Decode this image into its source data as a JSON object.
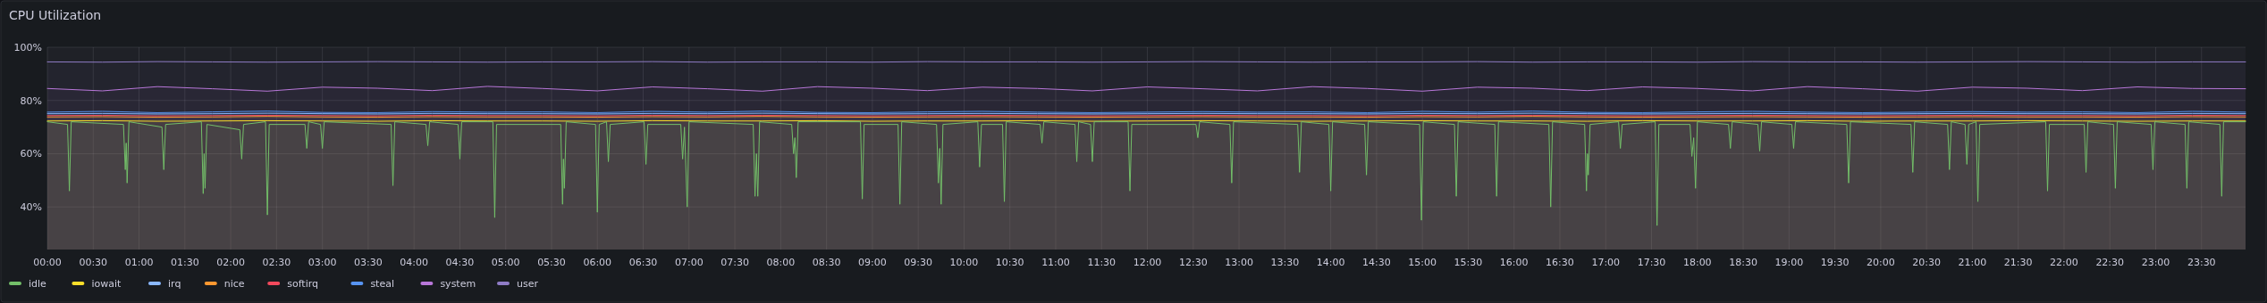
{
  "chart_data": {
    "type": "area",
    "title": "CPU Utilization",
    "x": [
      0,
      0.6,
      1.2,
      1.8,
      2.4,
      3,
      3.6,
      4.2,
      4.8,
      5.4,
      6,
      6.6,
      7.2,
      7.8,
      8.4,
      9,
      9.6,
      10.2,
      10.8,
      11.4,
      12,
      12.6,
      13.2,
      13.8,
      14.4,
      15,
      15.6,
      16.2,
      16.8,
      17.4,
      18,
      18.6,
      19.2,
      19.8,
      20.4,
      21,
      21.6,
      22.2,
      22.8,
      23.4,
      23.98
    ],
    "xlim": [
      0,
      23.98
    ],
    "xticks": [
      {
        "value": 0,
        "label": "00:00"
      },
      {
        "value": 0.5,
        "label": "00:30"
      },
      {
        "value": 1,
        "label": "01:00"
      },
      {
        "value": 1.5,
        "label": "01:30"
      },
      {
        "value": 2,
        "label": "02:00"
      },
      {
        "value": 2.5,
        "label": "02:30"
      },
      {
        "value": 3,
        "label": "03:00"
      },
      {
        "value": 3.5,
        "label": "03:30"
      },
      {
        "value": 4,
        "label": "04:00"
      },
      {
        "value": 4.5,
        "label": "04:30"
      },
      {
        "value": 5,
        "label": "05:00"
      },
      {
        "value": 5.5,
        "label": "05:30"
      },
      {
        "value": 6,
        "label": "06:00"
      },
      {
        "value": 6.5,
        "label": "06:30"
      },
      {
        "value": 7,
        "label": "07:00"
      },
      {
        "value": 7.5,
        "label": "07:30"
      },
      {
        "value": 8,
        "label": "08:00"
      },
      {
        "value": 8.5,
        "label": "08:30"
      },
      {
        "value": 9,
        "label": "09:00"
      },
      {
        "value": 9.5,
        "label": "09:30"
      },
      {
        "value": 10,
        "label": "10:00"
      },
      {
        "value": 10.5,
        "label": "10:30"
      },
      {
        "value": 11,
        "label": "11:00"
      },
      {
        "value": 11.5,
        "label": "11:30"
      },
      {
        "value": 12,
        "label": "12:00"
      },
      {
        "value": 12.5,
        "label": "12:30"
      },
      {
        "value": 13,
        "label": "13:00"
      },
      {
        "value": 13.5,
        "label": "13:30"
      },
      {
        "value": 14,
        "label": "14:00"
      },
      {
        "value": 14.5,
        "label": "14:30"
      },
      {
        "value": 15,
        "label": "15:00"
      },
      {
        "value": 15.5,
        "label": "15:30"
      },
      {
        "value": 16,
        "label": "16:00"
      },
      {
        "value": 16.5,
        "label": "16:30"
      },
      {
        "value": 17,
        "label": "17:00"
      },
      {
        "value": 17.5,
        "label": "17:30"
      },
      {
        "value": 18,
        "label": "18:00"
      },
      {
        "value": 18.5,
        "label": "18:30"
      },
      {
        "value": 19,
        "label": "19:00"
      },
      {
        "value": 19.5,
        "label": "19:30"
      },
      {
        "value": 20,
        "label": "20:00"
      },
      {
        "value": 20.5,
        "label": "20:30"
      },
      {
        "value": 21,
        "label": "21:00"
      },
      {
        "value": 21.5,
        "label": "21:30"
      },
      {
        "value": 22,
        "label": "22:00"
      },
      {
        "value": 22.5,
        "label": "22:30"
      },
      {
        "value": 23,
        "label": "23:00"
      },
      {
        "value": 23.5,
        "label": "23:30"
      }
    ],
    "ylim": [
      24,
      100
    ],
    "yticks": [
      {
        "value": 40,
        "label": "40%"
      },
      {
        "value": 60,
        "label": "60%"
      },
      {
        "value": 80,
        "label": "80%"
      },
      {
        "value": 100,
        "label": "100%"
      }
    ],
    "grid": true,
    "legend": "bottom",
    "line_style": "solid",
    "series": [
      {
        "name": "idle",
        "color": "#73bf69",
        "x": [
          0,
          0.22,
          0.24,
          0.26,
          0.83,
          0.85,
          0.86,
          0.87,
          0.89,
          1.25,
          1.27,
          1.29,
          1.68,
          1.7,
          1.71,
          1.72,
          1.74,
          2.1,
          2.12,
          2.14,
          2.38,
          2.4,
          2.42,
          2.81,
          2.83,
          2.85,
          2.98,
          3,
          3.02,
          3.75,
          3.77,
          3.79,
          4.13,
          4.15,
          4.17,
          4.48,
          4.5,
          4.52,
          4.86,
          4.88,
          4.9,
          5.6,
          5.62,
          5.63,
          5.64,
          5.66,
          5.98,
          6,
          6.02,
          6.1,
          6.12,
          6.14,
          6.51,
          6.53,
          6.55,
          6.91,
          6.93,
          6.95,
          6.98,
          7,
          7.7,
          7.72,
          7.735,
          7.75,
          7.77,
          8.12,
          8.14,
          8.155,
          8.17,
          8.19,
          8.87,
          8.89,
          8.91,
          9.28,
          9.3,
          9.32,
          9.7,
          9.72,
          9.735,
          9.75,
          9.77,
          10.15,
          10.17,
          10.19,
          10.42,
          10.44,
          10.46,
          10.83,
          10.85,
          10.87,
          11.21,
          11.23,
          11.25,
          11.38,
          11.4,
          11.42,
          11.79,
          11.81,
          11.83,
          12.53,
          12.55,
          12.57,
          12.9,
          12.92,
          12.94,
          13.64,
          13.66,
          13.68,
          13.98,
          14,
          14.02,
          14.37,
          14.39,
          14.41,
          14.97,
          14.99,
          15.01,
          15.35,
          15.37,
          15.39,
          15.79,
          15.81,
          15.83,
          16.38,
          16.4,
          16.42,
          16.77,
          16.79,
          16.8,
          16.81,
          16.83,
          17.14,
          17.16,
          17.18,
          17.54,
          17.56,
          17.58,
          17.92,
          17.94,
          17.96,
          17.98,
          18,
          18.34,
          18.36,
          18.38,
          18.66,
          18.68,
          18.7,
          19.03,
          19.05,
          19.07,
          19.63,
          19.65,
          19.67,
          20.33,
          20.35,
          20.37,
          20.73,
          20.75,
          20.77,
          20.92,
          20.94,
          20.96,
          21.04,
          21.06,
          21.08,
          21.8,
          21.82,
          21.84,
          22.22,
          22.24,
          22.26,
          22.54,
          22.56,
          22.58,
          22.95,
          22.97,
          22.99,
          23.32,
          23.34,
          23.36,
          23.7,
          23.72,
          23.74,
          23.98
        ],
        "values": [
          72,
          71,
          46,
          72,
          71,
          54,
          64,
          49,
          72,
          70,
          54,
          71,
          72,
          45,
          60,
          47,
          71,
          69,
          58,
          71,
          72,
          37,
          71,
          71,
          62,
          72,
          71,
          62,
          72,
          71,
          48,
          72,
          71,
          63,
          72,
          71,
          58,
          72,
          72,
          36,
          71,
          71,
          41,
          58,
          47,
          72,
          71,
          38,
          71,
          72,
          57,
          71,
          72,
          56,
          71,
          71,
          58,
          70,
          40,
          72,
          71,
          44,
          60,
          44,
          72,
          71,
          60,
          66,
          51,
          72,
          72,
          43,
          71,
          71,
          41,
          72,
          71,
          49,
          62,
          41,
          71,
          72,
          55,
          71,
          71,
          42,
          72,
          71,
          64,
          72,
          71,
          57,
          72,
          71,
          57,
          72,
          72,
          46,
          71,
          71,
          66,
          72,
          71,
          49,
          72,
          71,
          53,
          72,
          71,
          46,
          72,
          71,
          52,
          72,
          71,
          35,
          72,
          71,
          44,
          72,
          71,
          44,
          72,
          71,
          40,
          72,
          71,
          46,
          60,
          52,
          71,
          72,
          62,
          71,
          72,
          33,
          71,
          71,
          59,
          66,
          47,
          72,
          71,
          62,
          72,
          71,
          61,
          72,
          71,
          62,
          72,
          71,
          49,
          72,
          71,
          53,
          72,
          71,
          54,
          72,
          71,
          56,
          71,
          72,
          42,
          71,
          72,
          46,
          71,
          71,
          53,
          72,
          71,
          47,
          72,
          71,
          54,
          72,
          71,
          47,
          72,
          71,
          44,
          72,
          72
        ]
      },
      {
        "name": "iowait",
        "color": "#fade2a",
        "values": [
          72.3,
          72.4,
          72.2,
          72.3,
          72.4,
          72.3,
          72.2,
          72.4,
          72.3,
          72.3,
          72.2,
          72.4,
          72.3,
          72.3,
          72.4,
          72.2,
          72.3,
          72.3,
          72.4,
          72.2,
          72.3,
          72.4,
          72.3,
          72.2,
          72.3,
          72.4,
          72.3,
          72.3,
          72.2,
          72.4,
          72.3,
          72.3,
          72.4,
          72.2,
          72.3,
          72.3,
          72.4,
          72.3,
          72.2,
          72.3,
          72.3
        ]
      },
      {
        "name": "irq",
        "color": "#8ab8ff",
        "values": [
          75,
          75.1,
          74.9,
          75,
          75.2,
          75,
          74.9,
          75.1,
          75,
          75,
          74.9,
          75.1,
          75,
          75.2,
          75,
          74.9,
          75,
          75.1,
          75,
          74.9,
          75,
          75.1,
          75,
          75,
          74.9,
          75.1,
          75,
          75.2,
          75,
          74.9,
          75,
          75.1,
          75,
          74.9,
          75,
          75.1,
          75,
          75,
          74.9,
          75.1,
          75
        ]
      },
      {
        "name": "nice",
        "color": "#ff9830",
        "values": [
          73.8,
          73.9,
          73.7,
          73.8,
          74,
          73.8,
          73.7,
          73.9,
          73.8,
          73.8,
          73.7,
          73.9,
          73.8,
          74,
          73.8,
          73.7,
          73.8,
          73.9,
          73.8,
          73.7,
          73.8,
          73.9,
          73.8,
          73.8,
          73.7,
          73.9,
          73.8,
          74,
          73.8,
          73.7,
          73.8,
          73.9,
          73.8,
          73.7,
          73.8,
          73.9,
          73.8,
          73.8,
          73.7,
          73.9,
          73.8
        ]
      },
      {
        "name": "softirq",
        "color": "#f2495c",
        "values": [
          74.3,
          74.4,
          74.2,
          74.3,
          74.4,
          74.3,
          74.2,
          74.4,
          74.3,
          74.3,
          74.2,
          74.4,
          74.3,
          74.4,
          74.3,
          74.2,
          74.3,
          74.4,
          74.3,
          74.2,
          74.3,
          74.4,
          74.3,
          74.3,
          74.2,
          74.4,
          74.3,
          74.4,
          74.3,
          74.2,
          74.3,
          74.4,
          74.3,
          74.2,
          74.3,
          74.4,
          74.3,
          74.3,
          74.2,
          74.4,
          74.3
        ]
      },
      {
        "name": "steal",
        "color": "#5794f2",
        "values": [
          75.6,
          75.9,
          75.4,
          75.7,
          76,
          75.5,
          75.4,
          75.8,
          75.6,
          75.7,
          75.4,
          75.9,
          75.6,
          76,
          75.5,
          75.4,
          75.7,
          75.9,
          75.6,
          75.4,
          75.6,
          75.8,
          75.6,
          75.7,
          75.4,
          75.9,
          75.6,
          76,
          75.5,
          75.4,
          75.7,
          75.9,
          75.6,
          75.4,
          75.6,
          75.8,
          75.6,
          75.7,
          75.4,
          75.9,
          75.6
        ]
      },
      {
        "name": "system",
        "color": "#b877d9",
        "values": [
          84.5,
          83.6,
          85.2,
          84.4,
          83.5,
          85,
          84.6,
          83.7,
          85.3,
          84.5,
          83.6,
          85.1,
          84.4,
          83.5,
          85.2,
          84.6,
          83.7,
          85,
          84.5,
          83.6,
          85.1,
          84.4,
          83.6,
          85.2,
          84.5,
          83.5,
          85,
          84.6,
          83.7,
          85.1,
          84.5,
          83.6,
          85.2,
          84.4,
          83.5,
          85,
          84.6,
          83.7,
          85.1,
          84.5,
          84.4
        ]
      },
      {
        "name": "user",
        "color": "#8f7cc6",
        "values": [
          94.5,
          94.4,
          94.6,
          94.5,
          94.4,
          94.5,
          94.6,
          94.5,
          94.4,
          94.5,
          94.5,
          94.6,
          94.4,
          94.5,
          94.5,
          94.4,
          94.6,
          94.5,
          94.5,
          94.4,
          94.5,
          94.6,
          94.5,
          94.4,
          94.5,
          94.5,
          94.6,
          94.4,
          94.5,
          94.5,
          94.4,
          94.6,
          94.5,
          94.5,
          94.4,
          94.5,
          94.6,
          94.5,
          94.4,
          94.5,
          94.5
        ]
      }
    ]
  }
}
